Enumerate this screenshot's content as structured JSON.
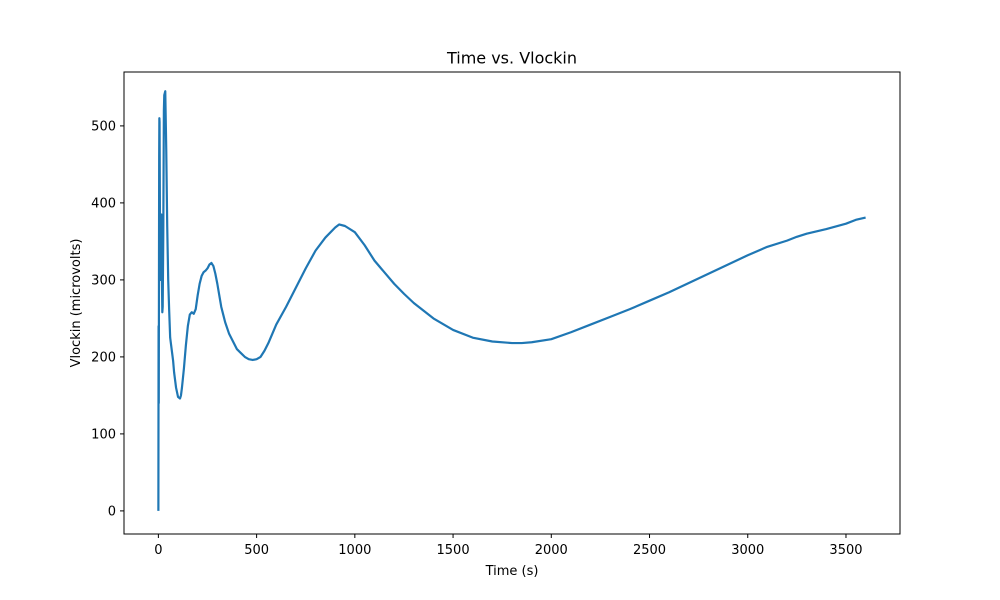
{
  "chart_data": {
    "type": "line",
    "title": "Time vs. Vlockin",
    "xlabel": "Time (s)",
    "ylabel": "Vlockin (microvolts)",
    "xlim": [
      -175,
      3775
    ],
    "ylim": [
      -30,
      570
    ],
    "xticks": [
      0,
      500,
      1000,
      1500,
      2000,
      2500,
      3000,
      3500
    ],
    "yticks": [
      0,
      100,
      200,
      300,
      400,
      500
    ],
    "grid": false,
    "legend": "none",
    "line_color": "#1f77b4",
    "series": [
      {
        "x": [
          0,
          1,
          2,
          3,
          4,
          5,
          6,
          8,
          10,
          12,
          15,
          18,
          20,
          22,
          25,
          28,
          30,
          35,
          40,
          45,
          50,
          55,
          60,
          65,
          70,
          75,
          80,
          90,
          100,
          110,
          115,
          120,
          130,
          140,
          150,
          160,
          170,
          180,
          190,
          200,
          210,
          220,
          230,
          240,
          250,
          260,
          270,
          280,
          290,
          300,
          310,
          320,
          330,
          340,
          360,
          380,
          400,
          420,
          440,
          460,
          480,
          500,
          520,
          540,
          560,
          580,
          600,
          650,
          700,
          750,
          800,
          850,
          900,
          920,
          950,
          1000,
          1050,
          1100,
          1150,
          1200,
          1250,
          1300,
          1400,
          1500,
          1600,
          1700,
          1800,
          1850,
          1900,
          2000,
          2100,
          2200,
          2300,
          2400,
          2500,
          2600,
          2700,
          2800,
          2900,
          3000,
          3100,
          3200,
          3250,
          3300,
          3400,
          3500,
          3550,
          3600
        ],
        "y": [
          0,
          240,
          140,
          300,
          460,
          510,
          505,
          380,
          300,
          330,
          385,
          300,
          258,
          265,
          360,
          520,
          540,
          545,
          470,
          370,
          300,
          260,
          225,
          215,
          205,
          195,
          180,
          160,
          148,
          146,
          150,
          160,
          185,
          215,
          240,
          255,
          258,
          256,
          262,
          280,
          295,
          305,
          310,
          312,
          315,
          320,
          322,
          318,
          308,
          295,
          280,
          265,
          255,
          245,
          230,
          220,
          210,
          205,
          200,
          197,
          196,
          197,
          200,
          208,
          218,
          230,
          242,
          265,
          290,
          315,
          338,
          355,
          368,
          372,
          370,
          362,
          345,
          325,
          310,
          295,
          282,
          270,
          250,
          235,
          225,
          220,
          218,
          218,
          219,
          223,
          232,
          242,
          252,
          262,
          273,
          284,
          296,
          308,
          320,
          332,
          343,
          351,
          356,
          360,
          366,
          373,
          378,
          381
        ]
      }
    ]
  }
}
